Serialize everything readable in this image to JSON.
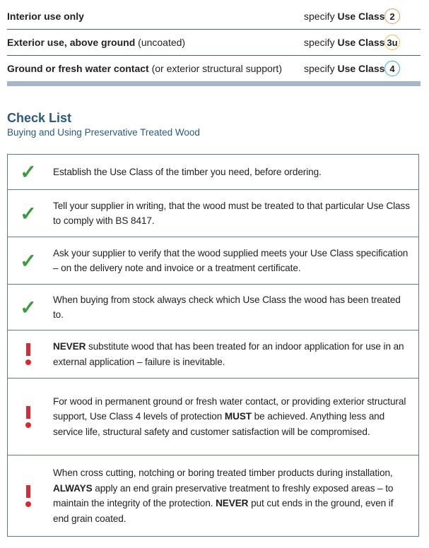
{
  "use_classes": [
    {
      "desc_bold": "Interior use only",
      "desc_normal": "",
      "specify": "specify ",
      "use_class_label": "Use Class",
      "class": "2",
      "color": "#e39a55"
    },
    {
      "desc_bold": "Exterior use, above ground",
      "desc_normal": " (uncoated)",
      "specify": "specify ",
      "use_class_label": "Use Class",
      "class": "3u",
      "color": "#efbd45"
    },
    {
      "desc_bold": "Ground or fresh water contact",
      "desc_normal": " (or exterior structural support)",
      "specify": "specify ",
      "use_class_label": "Use Class",
      "class": "4",
      "color": "#3aa6d6"
    }
  ],
  "checklist": {
    "title": "Check List",
    "subtitle": "Buying and Using Preservative Treated Wood",
    "colors": {
      "check": "#3c9b3c",
      "warning": "#d52b32"
    },
    "items": [
      {
        "icon": "check-icon",
        "segments": [
          {
            "t": "Establish the Use Class of the timber you need, before ordering."
          }
        ]
      },
      {
        "icon": "check-icon",
        "segments": [
          {
            "t": "Tell your supplier in writing, that the wood must be treated to that particular Use Class to comply with BS 8417."
          }
        ]
      },
      {
        "icon": "check-icon",
        "segments": [
          {
            "t": "Ask your supplier to verify that the wood supplied meets your Use Class specification – on the delivery note and invoice or a treatment certificate."
          }
        ]
      },
      {
        "icon": "check-icon",
        "segments": [
          {
            "t": "When buying from stock always check which Use Class the wood has been treated to."
          }
        ]
      },
      {
        "icon": "exclamation-icon",
        "segments": [
          {
            "t": "NEVER",
            "b": true
          },
          {
            "t": " substitute wood that has been treated for an indoor application for use in an external application – failure is inevitable."
          }
        ]
      },
      {
        "icon": "exclamation-icon",
        "segments": [
          {
            "t": "For wood in permanent ground or fresh water contact, or providing exterior structural support, Use Class 4 levels of protection "
          },
          {
            "t": "MUST",
            "b": true
          },
          {
            "t": " be achieved. Anything less and service life, structural safety and customer satisfaction will be compromised."
          }
        ]
      },
      {
        "icon": "exclamation-icon",
        "segments": [
          {
            "t": "When cross cutting, notching or boring treated timber products during installation, "
          },
          {
            "t": "ALWAYS",
            "b": true
          },
          {
            "t": " apply an end grain preservative treatment to freshly exposed areas – to maintain the integrity of the protection. "
          },
          {
            "t": "NEVER",
            "b": true
          },
          {
            "t": " put cut ends in the ground, even if end grain coated."
          }
        ]
      }
    ]
  }
}
